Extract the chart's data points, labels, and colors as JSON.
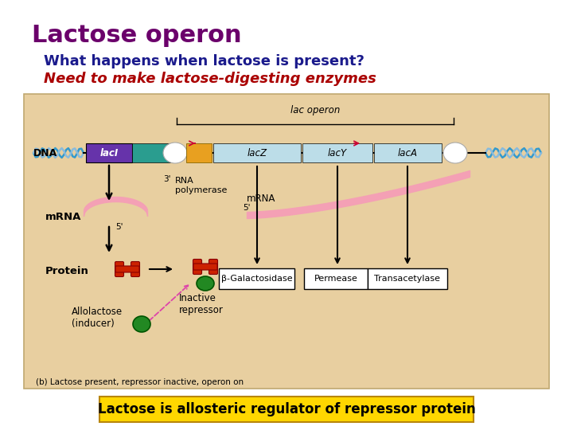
{
  "title": "Lactose operon",
  "title_color": "#6B006B",
  "subtitle": "What happens when lactose is present?",
  "subtitle_color": "#1A1A8C",
  "italic_text": "Need to make lactose-digesting enzymes",
  "italic_color": "#AA0000",
  "bottom_label": "Lactose is allosteric regulator of repressor protein",
  "bottom_label_color": "#000000",
  "bottom_bg_color": "#FFD700",
  "bg_color": "#FFFFFF",
  "diagram_bg": "#E8CFA0",
  "title_fontsize": 22,
  "subtitle_fontsize": 13,
  "italic_fontsize": 13,
  "dna_color1": "#4499CC",
  "dna_color2": "#88CCEE",
  "laci_color": "#6633AA",
  "teal_color": "#2A9D8F",
  "operator_color": "#E8A020",
  "lacbox_color": "#BCDDE8",
  "mrna_color": "#F4A0B5",
  "protein_color": "#CC2200",
  "green_color": "#228822",
  "enzyme_box_color": "#FFFFFF"
}
